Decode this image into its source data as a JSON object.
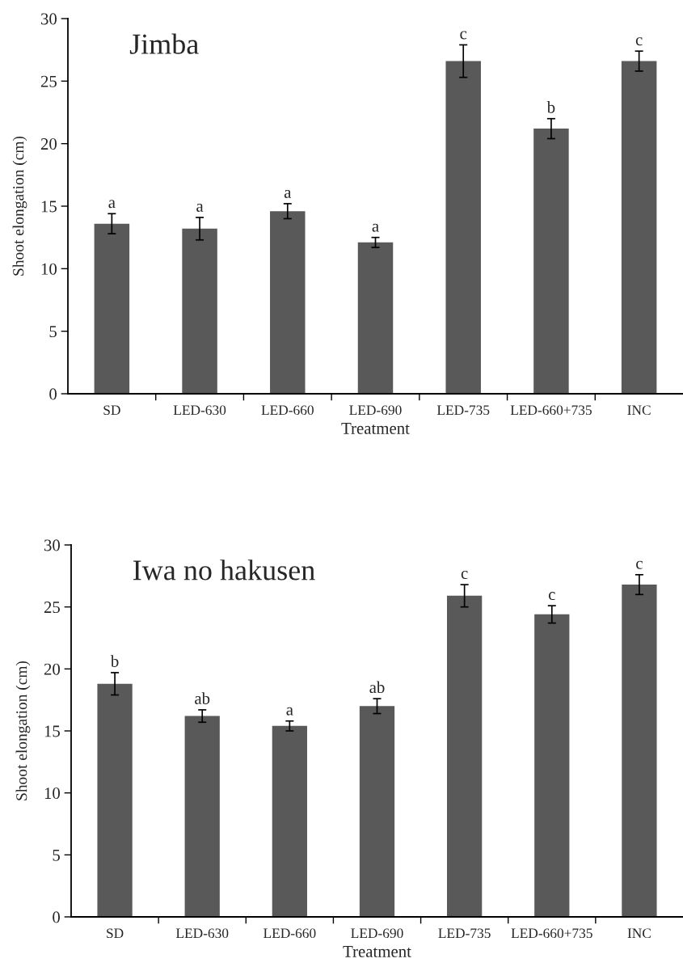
{
  "chart_data": [
    {
      "type": "bar",
      "title": "Jimba",
      "xlabel": "Treatment",
      "ylabel": "Shoot elongation (cm)",
      "categories": [
        "SD",
        "LED-630",
        "LED-660",
        "LED-690",
        "LED-735",
        "LED-660+735",
        "INC"
      ],
      "values": [
        13.6,
        13.2,
        14.6,
        12.1,
        26.6,
        21.2,
        26.6
      ],
      "errors": [
        0.8,
        0.9,
        0.6,
        0.4,
        1.3,
        0.8,
        0.8
      ],
      "color": "#595959",
      "ylim": [
        0,
        30
      ],
      "yticks": [
        0,
        5,
        10,
        15,
        20,
        25,
        30
      ],
      "annotations": [
        {
          "text": "a",
          "x": "SD",
          "y": 14.4
        },
        {
          "text": "a",
          "x": "LED-630",
          "y": 14.1
        },
        {
          "text": "a",
          "x": "LED-660",
          "y": 15.2
        },
        {
          "text": "a",
          "x": "LED-690",
          "y": 12.5
        },
        {
          "text": "c",
          "x": "LED-735",
          "y": 27.9
        },
        {
          "text": "b",
          "x": "LED-660+735",
          "y": 22.0
        },
        {
          "text": "c",
          "x": "INC",
          "y": 27.4
        }
      ]
    },
    {
      "type": "bar",
      "title": "Iwa no hakusen",
      "xlabel": "Treatment",
      "ylabel": "Shoot elongation (cm)",
      "categories": [
        "SD",
        "LED-630",
        "LED-660",
        "LED-690",
        "LED-735",
        "LED-660+735",
        "INC"
      ],
      "values": [
        18.8,
        16.2,
        15.4,
        17.0,
        25.9,
        24.4,
        26.8
      ],
      "errors": [
        0.9,
        0.5,
        0.4,
        0.6,
        0.9,
        0.7,
        0.8
      ],
      "color": "#595959",
      "ylim": [
        0,
        30
      ],
      "yticks": [
        0,
        5,
        10,
        15,
        20,
        25,
        30
      ],
      "annotations": [
        {
          "text": "b",
          "x": "SD",
          "y": 19.7
        },
        {
          "text": "ab",
          "x": "LED-630",
          "y": 16.7
        },
        {
          "text": "a",
          "x": "LED-660",
          "y": 15.8
        },
        {
          "text": "ab",
          "x": "LED-690",
          "y": 17.6
        },
        {
          "text": "c",
          "x": "LED-735",
          "y": 26.8
        },
        {
          "text": "c",
          "x": "LED-660+735",
          "y": 25.1
        },
        {
          "text": "c",
          "x": "INC",
          "y": 27.6
        }
      ]
    }
  ]
}
